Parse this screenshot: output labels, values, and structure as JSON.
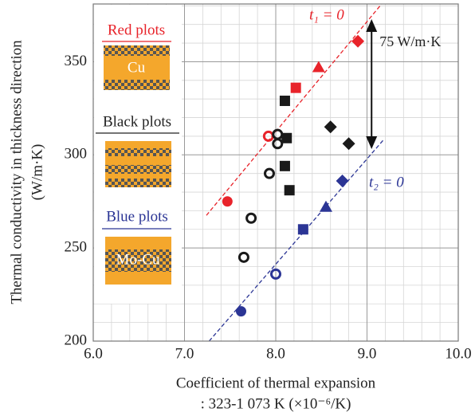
{
  "chart_data": {
    "type": "scatter",
    "x_label": [
      "Coefficient of thermal expansion",
      ": 323-1 073 K (×10⁻⁶/K)"
    ],
    "y_label": [
      "Thermal conductivity in thickness direction",
      "(W/m·K)"
    ],
    "xlim": [
      6.0,
      10.0
    ],
    "ylim": [
      200,
      381
    ],
    "xticks": [
      {
        "value": 6,
        "label": "6.0"
      },
      {
        "value": 7,
        "label": "7.0"
      },
      {
        "value": 8,
        "label": "8.0"
      },
      {
        "value": 9,
        "label": "9.0"
      },
      {
        "value": 10,
        "label": "10.0"
      }
    ],
    "yticks": [
      200,
      250,
      300,
      350
    ],
    "grid": true,
    "series": [
      {
        "name": "Red plots",
        "material": "Cu",
        "color": "#e8232a",
        "x": [
          7.47,
          7.92,
          8.22,
          8.47,
          8.9
        ],
        "values": [
          275,
          310,
          336,
          347,
          361
        ],
        "markers": [
          "circle",
          "circle",
          "square",
          "triangle",
          "diamond"
        ],
        "filled": [
          true,
          false,
          true,
          true,
          true
        ]
      },
      {
        "name": "Black plots",
        "color": "#1a1a1a",
        "x": [
          7.65,
          7.73,
          7.93,
          8.02,
          8.02,
          8.1,
          8.12,
          8.1,
          8.15,
          8.6,
          8.8
        ],
        "values": [
          245,
          266,
          290,
          306,
          311,
          329,
          309,
          294,
          281,
          315,
          306
        ],
        "markers": [
          "circle",
          "circle",
          "circle",
          "circle",
          "circle",
          "square",
          "square",
          "square",
          "square",
          "diamond",
          "diamond"
        ],
        "filled": [
          false,
          false,
          false,
          false,
          false,
          true,
          true,
          true,
          true,
          true,
          true
        ]
      },
      {
        "name": "Blue plots",
        "material": "Mo-Cu",
        "color": "#2b3595",
        "x": [
          7.62,
          8.0,
          8.3,
          8.55,
          8.73
        ],
        "values": [
          216,
          236,
          260,
          272,
          286
        ],
        "markers": [
          "circle",
          "circle",
          "square",
          "triangle",
          "diamond"
        ],
        "filled": [
          true,
          false,
          true,
          true,
          true
        ]
      }
    ],
    "lines": [
      {
        "label": "t₁ = 0",
        "color": "#e8232a",
        "x": [
          7.24,
          9.16
        ],
        "y": [
          267.5,
          381
        ]
      },
      {
        "label": "t₂ = 0",
        "color": "#2b3595",
        "x": [
          7.27,
          9.18
        ],
        "y": [
          200,
          308
        ]
      }
    ],
    "arrow": {
      "label": "75 W/m·K",
      "x": 9.05,
      "y": [
        304,
        372
      ]
    }
  }
}
